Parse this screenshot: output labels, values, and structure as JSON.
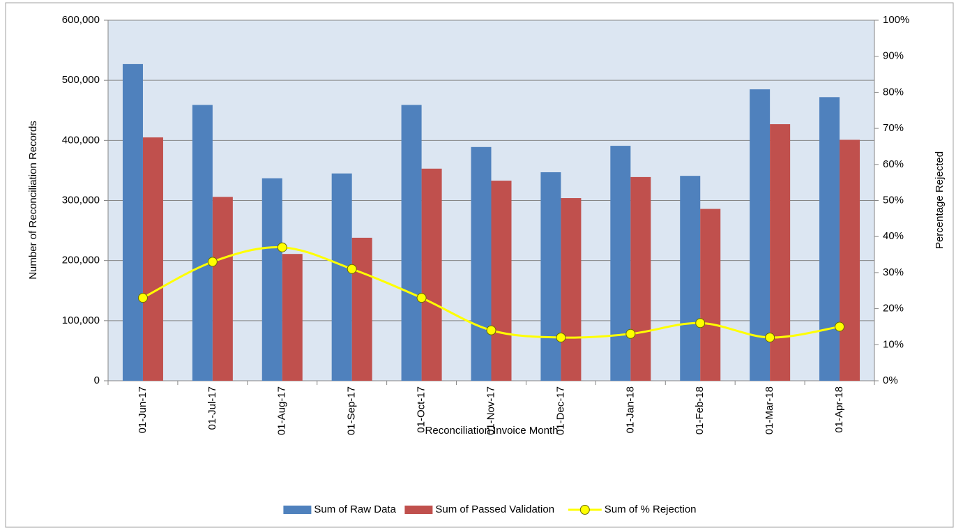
{
  "chart_data": {
    "type": "combo",
    "x_label": "Reconciliation Invoice Month",
    "y_label": "Number of Reconciliation Records",
    "y2_label": "Percentage Rejected",
    "categories": [
      "01-Jun-17",
      "01-Jul-17",
      "01-Aug-17",
      "01-Sep-17",
      "01-Oct-17",
      "01-Nov-17",
      "01-Dec-17",
      "01-Jan-18",
      "01-Feb-18",
      "01-Mar-18",
      "01-Apr-18"
    ],
    "series": [
      {
        "name": "Sum of Raw Data",
        "type": "bar",
        "color": "#4f81bd",
        "values": [
          527000,
          459000,
          337000,
          345000,
          459000,
          389000,
          347000,
          391000,
          341000,
          485000,
          472000
        ]
      },
      {
        "name": "Sum of Passed Validation",
        "type": "bar",
        "color": "#c0504d",
        "values": [
          405000,
          306000,
          211000,
          238000,
          353000,
          333000,
          304000,
          339000,
          286000,
          427000,
          401000
        ]
      },
      {
        "name": "Sum of % Rejection",
        "type": "line",
        "axis": "y2",
        "color": "#ffff00",
        "values": [
          23,
          33,
          37,
          31,
          23,
          14,
          12,
          13,
          16,
          12,
          15
        ]
      }
    ],
    "ylim": [
      0,
      600000
    ],
    "yticks": [
      0,
      {
        "value": 100000,
        "label": "100,000"
      },
      {
        "value": 200000,
        "label": "200,000"
      },
      {
        "value": 300000,
        "label": "300,000"
      },
      {
        "value": 400000,
        "label": "400,000"
      },
      {
        "value": 500000,
        "label": "500,000"
      },
      {
        "value": 600000,
        "label": "600,000"
      }
    ],
    "y2lim": [
      0,
      100
    ],
    "y2ticks": [
      {
        "value": 0,
        "label": "0%"
      },
      {
        "value": 10,
        "label": "10%"
      },
      {
        "value": 20,
        "label": "20%"
      },
      {
        "value": 30,
        "label": "30%"
      },
      {
        "value": 40,
        "label": "40%"
      },
      {
        "value": 50,
        "label": "50%"
      },
      {
        "value": 60,
        "label": "60%"
      },
      {
        "value": 70,
        "label": "70%"
      },
      {
        "value": 80,
        "label": "80%"
      },
      {
        "value": 90,
        "label": "90%"
      },
      {
        "value": 100,
        "label": "100%"
      }
    ],
    "grid": true,
    "legend": "bottom"
  }
}
